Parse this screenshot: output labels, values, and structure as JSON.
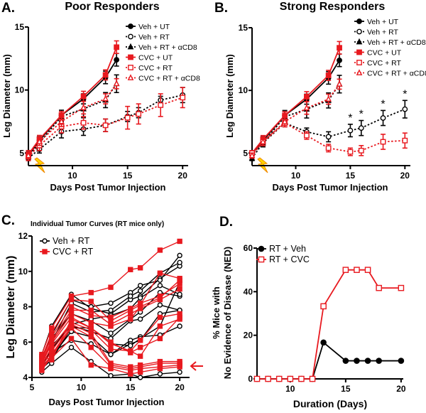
{
  "chart_data": [
    {
      "panel": "A.",
      "title": "Poor Responders",
      "type": "line",
      "xlabel": "Days Post Tumor Injection",
      "ylabel": "Leg Diameter (mm)",
      "xlim": [
        6,
        20.5
      ],
      "ylim": [
        4,
        15
      ],
      "xticks": [
        10,
        15,
        20
      ],
      "yticks": [
        5,
        10,
        15
      ],
      "grid": false,
      "legend": "top-right",
      "annotation_icons": [
        "lightning-bolt at day 7 (RT)"
      ],
      "series": [
        {
          "name": "Veh + UT",
          "color": "#000000",
          "marker": "filled-circle",
          "line": "solid",
          "x": [
            6,
            7,
            9,
            11,
            13,
            14
          ],
          "y": [
            4.8,
            6.0,
            8.0,
            9.3,
            11.0,
            12.4
          ],
          "err": [
            0.3,
            0.3,
            0.4,
            0.4,
            0.5,
            0.5
          ]
        },
        {
          "name": "Veh + RT",
          "color": "#000000",
          "marker": "open-circle",
          "line": "dotted",
          "x": [
            6,
            7,
            9,
            11,
            13,
            15,
            16,
            18,
            20
          ],
          "y": [
            4.6,
            5.3,
            6.7,
            6.9,
            7.2,
            7.9,
            8.2,
            9.2,
            9.6
          ],
          "err": [
            0.2,
            0.3,
            0.5,
            0.5,
            0.5,
            0.4,
            0.4,
            0.3,
            0.6
          ]
        },
        {
          "name": "Veh + RT + αCD8",
          "color": "#000000",
          "marker": "filled-triangle",
          "line": "dotted",
          "x": [
            6,
            7,
            9,
            11,
            13,
            14
          ],
          "y": [
            4.7,
            5.8,
            7.9,
            8.5,
            9.2,
            10.5
          ],
          "err": [
            0.2,
            0.3,
            0.4,
            0.7,
            0.6,
            0.7
          ]
        },
        {
          "name": "CVC + UT",
          "color": "#e8191f",
          "marker": "filled-square",
          "line": "solid",
          "x": [
            6,
            7,
            9,
            11,
            13,
            14
          ],
          "y": [
            4.9,
            6.1,
            8.0,
            9.5,
            11.2,
            13.4
          ],
          "err": [
            0.3,
            0.3,
            0.3,
            0.4,
            0.4,
            0.5
          ]
        },
        {
          "name": "CVC + RT",
          "color": "#e8191f",
          "marker": "open-square",
          "line": "dotted",
          "x": [
            6,
            7,
            9,
            11,
            13,
            15,
            16,
            18,
            20
          ],
          "y": [
            4.7,
            5.6,
            7.1,
            7.4,
            7.2,
            7.8,
            8.1,
            8.8,
            9.4
          ],
          "err": [
            0.3,
            0.4,
            0.5,
            0.5,
            0.5,
            0.9,
            0.8,
            0.9,
            0.8
          ]
        },
        {
          "name": "CVC + RT + αCD8",
          "color": "#e8191f",
          "marker": "open-triangle",
          "line": "dotted",
          "x": [
            6,
            7,
            9,
            11,
            13,
            14
          ],
          "y": [
            4.8,
            5.9,
            7.5,
            8.6,
            9.3,
            10.5
          ],
          "err": [
            0.2,
            0.3,
            0.4,
            0.5,
            0.4,
            0.4
          ]
        }
      ]
    },
    {
      "panel": "B.",
      "title": "Strong Responders",
      "type": "line",
      "xlabel": "Days Post Tumor Injection",
      "ylabel": "Leg Diameter (mm)",
      "xlim": [
        6,
        20.5
      ],
      "ylim": [
        4,
        15
      ],
      "xticks": [
        10,
        15,
        20
      ],
      "yticks": [
        5,
        10,
        15
      ],
      "grid": false,
      "legend": "top-right",
      "annotation_icons": [
        "lightning-bolt at day 7 (RT)"
      ],
      "significance": {
        "label": "*",
        "x": [
          15,
          16,
          18,
          20
        ]
      },
      "series": [
        {
          "name": "Veh + UT",
          "color": "#000000",
          "marker": "filled-circle",
          "line": "solid",
          "x": [
            6,
            7,
            9,
            11,
            13,
            14
          ],
          "y": [
            5.0,
            6.0,
            8.0,
            9.3,
            11.0,
            12.4
          ],
          "err": [
            0.2,
            0.3,
            0.4,
            0.4,
            0.5,
            0.5
          ]
        },
        {
          "name": "Veh + RT",
          "color": "#000000",
          "marker": "open-circle",
          "line": "dotted",
          "x": [
            6,
            7,
            9,
            11,
            13,
            15,
            16,
            18,
            20
          ],
          "y": [
            5.0,
            5.8,
            7.4,
            6.7,
            6.3,
            6.8,
            7.0,
            7.8,
            8.5
          ],
          "err": [
            0.2,
            0.3,
            0.3,
            0.3,
            0.4,
            0.5,
            0.6,
            0.6,
            0.7
          ]
        },
        {
          "name": "Veh + RT + αCD8",
          "color": "#000000",
          "marker": "filled-triangle",
          "line": "dotted",
          "x": [
            6,
            7,
            9,
            11,
            13,
            14
          ],
          "y": [
            4.6,
            5.8,
            7.9,
            8.5,
            9.2,
            10.5
          ],
          "err": [
            0.2,
            0.3,
            0.4,
            0.7,
            0.6,
            0.7
          ]
        },
        {
          "name": "CVC + UT",
          "color": "#e8191f",
          "marker": "filled-square",
          "line": "solid",
          "x": [
            6,
            7,
            9,
            11,
            13,
            14
          ],
          "y": [
            5.0,
            6.1,
            8.0,
            9.5,
            11.2,
            13.4
          ],
          "err": [
            0.2,
            0.3,
            0.3,
            0.4,
            0.4,
            0.5
          ]
        },
        {
          "name": "CVC + RT",
          "color": "#e8191f",
          "marker": "open-square",
          "line": "dotted",
          "x": [
            6,
            7,
            9,
            11,
            13,
            15,
            16,
            18,
            20
          ],
          "y": [
            5.0,
            5.9,
            7.4,
            6.4,
            5.4,
            5.1,
            5.2,
            5.9,
            6.0
          ],
          "err": [
            0.2,
            0.3,
            0.3,
            0.3,
            0.3,
            0.3,
            0.4,
            0.6,
            0.6
          ]
        },
        {
          "name": "CVC + RT + αCD8",
          "color": "#e8191f",
          "marker": "open-triangle",
          "line": "dotted",
          "x": [
            6,
            7,
            9,
            11,
            13,
            14
          ],
          "y": [
            4.8,
            5.9,
            7.5,
            8.6,
            9.3,
            10.5
          ],
          "err": [
            0.2,
            0.3,
            0.4,
            0.5,
            0.4,
            0.4
          ]
        }
      ]
    },
    {
      "panel": "C.",
      "title": "Individual Tumor Curves (RT mice only)",
      "type": "line",
      "xlabel": "Days Post Tumor Injection",
      "ylabel": "Leg Diameter (mm)",
      "xlim": [
        5,
        21
      ],
      "ylim": [
        4,
        12
      ],
      "xticks": [
        5,
        10,
        15,
        20
      ],
      "yticks": [
        4,
        6,
        8,
        10,
        12
      ],
      "grid": false,
      "legend": "top-left",
      "annotation_icons": [
        "red arrow pointing at CVC + RT curves near 4.6 mm at day 20"
      ],
      "x": [
        6,
        7,
        9,
        11,
        13,
        15,
        16,
        18,
        20
      ],
      "series": [
        {
          "name": "Veh + RT",
          "color": "#000000",
          "marker": "open-circle",
          "curves": [
            [
              4.3,
              4.8,
              5.7,
              4.9,
              4.1,
              4.2,
              4.0,
              4.2,
              4.3
            ],
            [
              4.8,
              5.4,
              6.1,
              5.9,
              5.3,
              6.1,
              6.3,
              6.4,
              6.9
            ],
            [
              5.0,
              5.8,
              6.9,
              6.6,
              6.2,
              7.2,
              7.3,
              8.1,
              7.8
            ],
            [
              5.2,
              6.2,
              7.6,
              7.2,
              6.5,
              7.3,
              7.7,
              8.8,
              8.6
            ],
            [
              5.3,
              6.9,
              8.7,
              7.9,
              7.6,
              8.4,
              8.6,
              9.6,
              10.3
            ],
            [
              5.1,
              6.4,
              8.4,
              8.0,
              8.2,
              8.8,
              9.2,
              9.5,
              10.9
            ],
            [
              4.9,
              6.0,
              8.2,
              7.7,
              7.8,
              8.6,
              8.9,
              9.9,
              10.5
            ],
            [
              4.7,
              5.6,
              7.0,
              7.3,
              7.5,
              7.9,
              8.5,
              9.2,
              8.7
            ],
            [
              4.6,
              5.2,
              6.6,
              6.3,
              5.3,
              5.9,
              6.1,
              7.6,
              7.8
            ],
            [
              4.5,
              5.0,
              6.8,
              6.8,
              5.9,
              5.8,
              6.2,
              6.9,
              9.4
            ]
          ]
        },
        {
          "name": "CVC + RT",
          "color": "#e8191f",
          "marker": "filled-square",
          "curves": [
            [
              5.3,
              6.8,
              8.6,
              8.8,
              9.1,
              10.1,
              10.2,
              11.2,
              11.7
            ],
            [
              5.1,
              6.5,
              8.4,
              8.3,
              7.2,
              7.8,
              8.1,
              9.9,
              9.6
            ],
            [
              5.0,
              6.3,
              8.0,
              7.5,
              7.4,
              7.9,
              8.2,
              8.6,
              9.3
            ],
            [
              4.9,
              6.1,
              7.8,
              7.8,
              7.0,
              7.6,
              7.9,
              8.4,
              9.0
            ],
            [
              4.8,
              5.9,
              7.4,
              6.8,
              5.9,
              5.5,
              6.1,
              7.4,
              7.6
            ],
            [
              4.7,
              5.7,
              7.1,
              6.7,
              5.6,
              5.5,
              5.2,
              6.9,
              7.3
            ],
            [
              4.6,
              5.5,
              7.0,
              6.5,
              4.8,
              4.6,
              4.7,
              4.9,
              4.9
            ],
            [
              4.5,
              5.3,
              6.9,
              6.3,
              4.7,
              4.5,
              4.6,
              4.8,
              4.8
            ],
            [
              4.4,
              5.2,
              6.8,
              5.7,
              4.6,
              4.4,
              4.5,
              4.6,
              4.7
            ],
            [
              4.6,
              5.1,
              6.2,
              4.7,
              4.5,
              4.2,
              4.3,
              4.5,
              4.6
            ],
            [
              5.2,
              5.0,
              7.3,
              6.8,
              6.0,
              5.4,
              5.7,
              6.2,
              7.4
            ],
            [
              4.8,
              6.0,
              7.6,
              7.1,
              6.9,
              7.3,
              8.0,
              8.5,
              9.5
            ]
          ]
        }
      ]
    },
    {
      "panel": "D.",
      "title": "",
      "type": "line",
      "xlabel": "Duration (Days)",
      "ylabel": [
        "% Mice with",
        "No Evidence of Disease (NED)"
      ],
      "xlim": [
        7,
        20.5
      ],
      "ylim": [
        0,
        60
      ],
      "xticks": [
        10,
        15,
        20
      ],
      "yticks": [
        0,
        20,
        40,
        60
      ],
      "grid": false,
      "legend": "top-left",
      "series": [
        {
          "name": "RT + Veh",
          "color": "#000000",
          "marker": "filled-circle",
          "line": "solid",
          "x": [
            7,
            8,
            9,
            10,
            11,
            12,
            13,
            15,
            16,
            17,
            18,
            20
          ],
          "y": [
            0,
            0,
            0,
            0,
            0,
            0,
            16.7,
            8.3,
            8.3,
            8.3,
            8.3,
            8.3
          ]
        },
        {
          "name": "RT + CVC",
          "color": "#e8191f",
          "marker": "open-square",
          "line": "solid",
          "x": [
            7,
            8,
            9,
            10,
            11,
            12,
            13,
            15,
            16,
            17,
            18,
            20
          ],
          "y": [
            0,
            0,
            0,
            0,
            0,
            0,
            33.3,
            50,
            50,
            50,
            41.7,
            41.7
          ]
        }
      ]
    }
  ]
}
